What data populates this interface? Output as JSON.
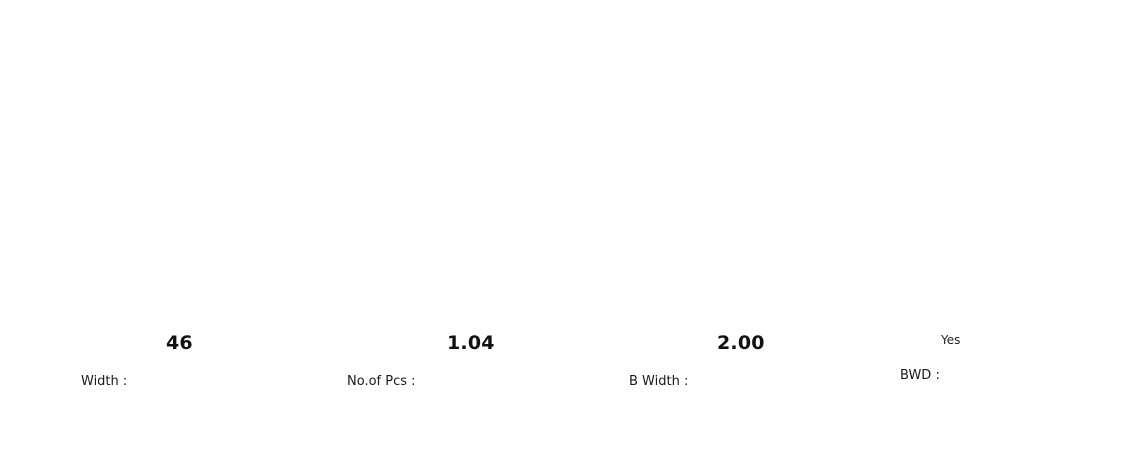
{
  "fields": {
    "width": {
      "label": "Width :",
      "value": "46"
    },
    "no_of_pcs": {
      "label": "No.of Pcs :",
      "value": "1.04"
    },
    "b_width": {
      "label": "B Width :",
      "value": "2.00"
    },
    "bwd": {
      "label": "BWD :",
      "value": "Yes"
    }
  }
}
